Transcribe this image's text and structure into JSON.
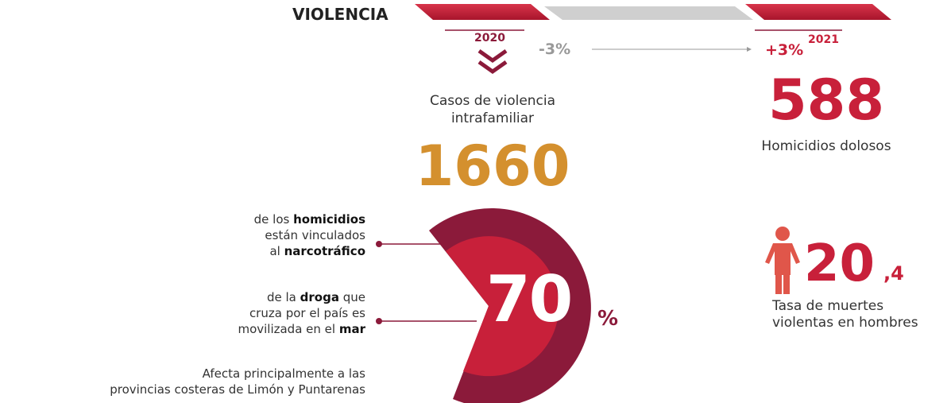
{
  "header": {
    "title": "VIOLENCIA"
  },
  "comparison": {
    "year_left": "2020",
    "change_left": "-3%",
    "change_right": "+3%",
    "year_right": "2021"
  },
  "domestic": {
    "label": "Casos de violencia intrafamiliar",
    "value": "1660"
  },
  "homicides": {
    "value": "588",
    "label": "Homicidios dolosos"
  },
  "drug_share": {
    "value": "70",
    "unit": "%",
    "notes": [
      [
        [
          {
            "text": "de los ",
            "bold": false
          },
          {
            "text": "homicidios",
            "bold": true
          }
        ],
        [
          {
            "text": "están vinculados",
            "bold": false
          }
        ],
        [
          {
            "text": "al ",
            "bold": false
          },
          {
            "text": "narcotráfico",
            "bold": true
          }
        ]
      ],
      [
        [
          {
            "text": "de la ",
            "bold": false
          },
          {
            "text": "droga",
            "bold": true
          },
          {
            "text": " que",
            "bold": false
          }
        ],
        [
          {
            "text": "cruza por el país es",
            "bold": false
          }
        ],
        [
          {
            "text": "movilizada en el ",
            "bold": false
          },
          {
            "text": "mar",
            "bold": true
          }
        ]
      ],
      [
        [
          {
            "text": "Afecta principalmente a las",
            "bold": false
          }
        ],
        [
          {
            "text": "provincias costeras de Limón y Puntarenas",
            "bold": false
          }
        ]
      ]
    ]
  },
  "male_rate": {
    "integer": "20",
    "decimal": ",4",
    "label": "Tasa de muertes violentas en hombres"
  }
}
